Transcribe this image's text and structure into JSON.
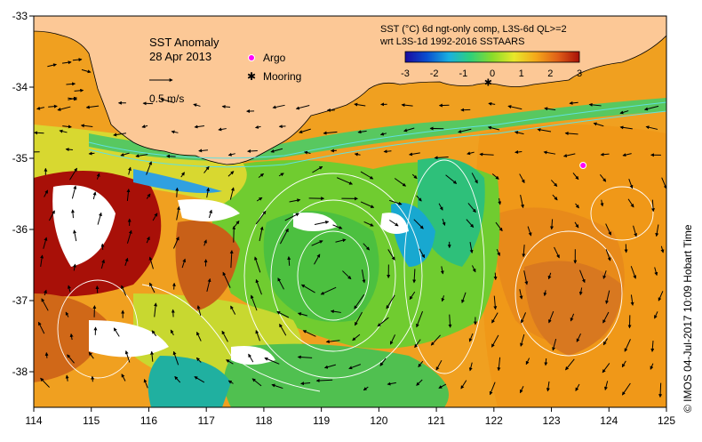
{
  "map": {
    "title": "SST Anomaly",
    "date": "28 Apr 2013",
    "scale_label": "0.5 m/s",
    "legend": {
      "argo_label": "Argo",
      "mooring_label": "Mooring"
    },
    "colorbar": {
      "title_line1": "SST (°C) 6d ngt-only comp, L3S-6d QL>=2",
      "title_line2": "wrt L3S-1d 1992-2016 SSTAARS",
      "ticks": [
        "-3",
        "-2",
        "-1",
        "0",
        "1",
        "2",
        "3"
      ],
      "min": -3,
      "max": 3,
      "colors": [
        "#1a0aa0",
        "#0a4fd0",
        "#19b0e0",
        "#2fd07a",
        "#8adc2a",
        "#e8e82a",
        "#f4a81a",
        "#e06018",
        "#a81008"
      ]
    },
    "x_axis": {
      "ticks": [
        "114",
        "115",
        "116",
        "117",
        "118",
        "119",
        "120",
        "121",
        "122",
        "123",
        "124",
        "125"
      ],
      "min": 114,
      "max": 125
    },
    "y_axis": {
      "ticks": [
        "-33",
        "-34",
        "-35",
        "-36",
        "-37",
        "-38"
      ],
      "min": -38.5,
      "max": -33
    },
    "credit": "© IMOS 04-Jul-2017 10:09 Hobart Time",
    "argo_point": {
      "lon": 123.55,
      "lat": -35.1
    },
    "mooring_point": {
      "lon": 121.9,
      "lat": -33.93
    },
    "land_color": "#fcc896"
  }
}
